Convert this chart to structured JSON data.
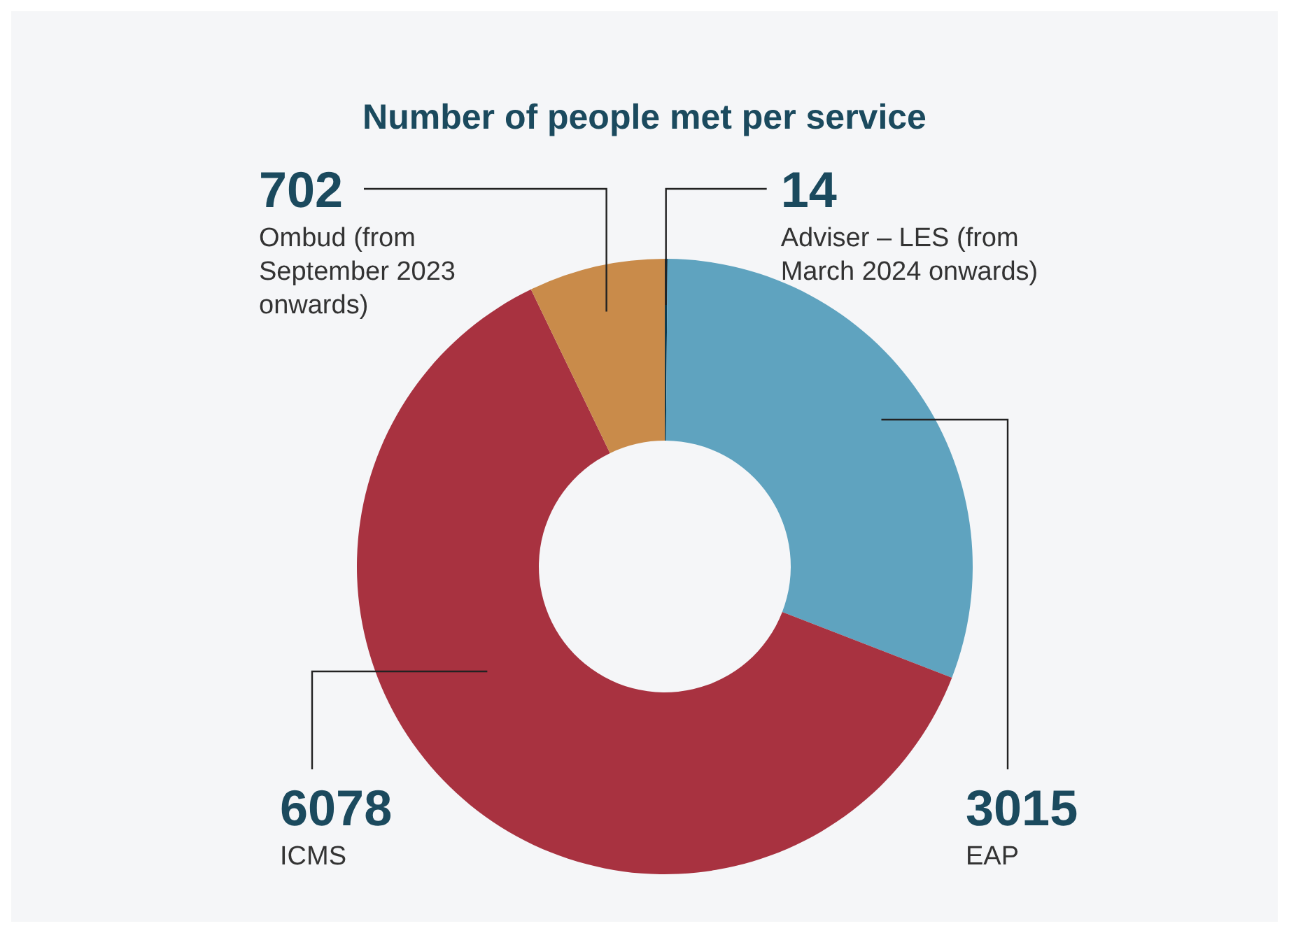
{
  "chart_data": {
    "type": "donut",
    "title": "Number of people met per service",
    "categories": [
      "Adviser – LES (from March 2024 onwards)",
      "EAP",
      "ICMS",
      "Ombud (from September 2023 onwards)"
    ],
    "values": [
      14,
      3015,
      6078,
      702
    ],
    "colors": [
      "#0e3c50",
      "#5fa3bf",
      "#a83240",
      "#c98b4a"
    ],
    "data_labels": true
  }
}
